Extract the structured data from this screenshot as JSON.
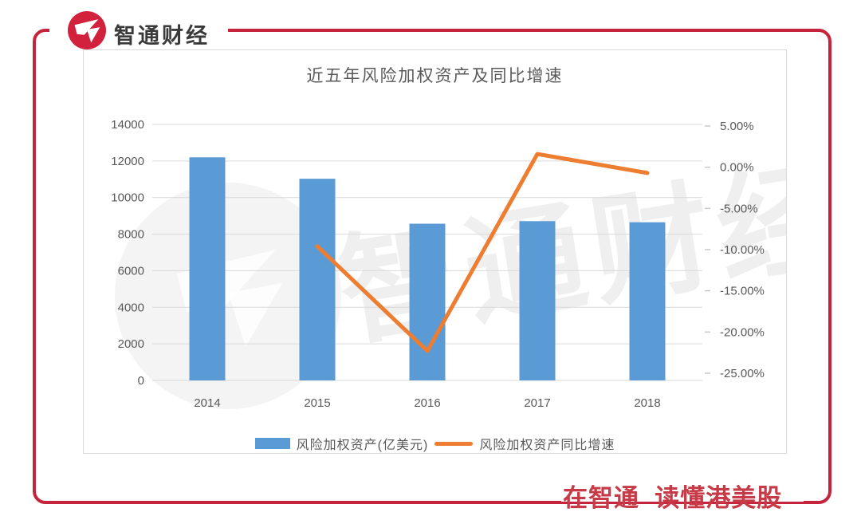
{
  "brand": {
    "logo_text": "智通财经",
    "slogan": "在智通  读懂港美股",
    "frame_red": "#C5243C",
    "logo_red": "#D2213C",
    "slogan_red": "#C63B47"
  },
  "watermark": {
    "text": "智通财经"
  },
  "chart_data": {
    "type": "bar+line",
    "title": "近五年风险加权资产及同比增速",
    "categories": [
      "2014",
      "2015",
      "2016",
      "2017",
      "2018"
    ],
    "series": [
      {
        "name": "风险加权资产(亿美元)",
        "type": "bar",
        "axis": "left",
        "color": "#5B9BD5",
        "values": [
          12200,
          11030,
          8570,
          8710,
          8650
        ]
      },
      {
        "name": "风险加权资产同比增速",
        "type": "line",
        "axis": "right",
        "color": "#ED7D31",
        "values": [
          null,
          -9.6,
          -22.3,
          1.6,
          -0.7
        ]
      }
    ],
    "left_axis": {
      "min": 0,
      "max": 14000,
      "step": 2000,
      "ticks": [
        "14000",
        "12000",
        "10000",
        "8000",
        "6000",
        "4000",
        "2000",
        "0"
      ]
    },
    "right_axis": {
      "min": -25,
      "max": 5,
      "step": 5,
      "ticks": [
        "5.00%",
        "0.00%",
        "-5.00%",
        "-10.00%",
        "-15.00%",
        "-20.00%",
        "-25.00%"
      ]
    },
    "grid": true,
    "legend_position": "bottom",
    "colors": {
      "gridline": "#D9D9D9",
      "axis_text": "#595959",
      "tick_mark": "#C9C9C9"
    }
  }
}
